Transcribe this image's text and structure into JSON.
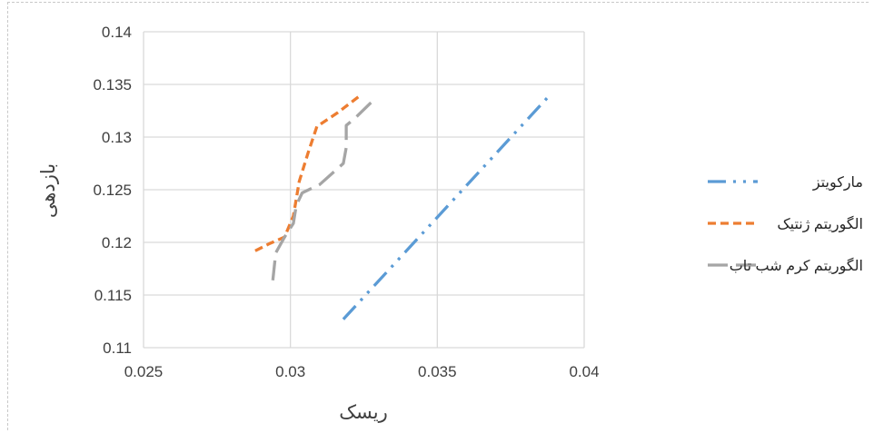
{
  "chart_data": {
    "type": "line",
    "title": "",
    "xlabel": "ریسک",
    "ylabel": "بازدهی",
    "xlim": [
      0.025,
      0.04
    ],
    "ylim": [
      0.11,
      0.14
    ],
    "xticks": [
      0.025,
      0.03,
      0.035,
      0.04
    ],
    "xtick_labels": [
      "0.025",
      "0.03",
      "0.035",
      "0.04"
    ],
    "yticks": [
      0.11,
      0.115,
      0.12,
      0.125,
      0.13,
      0.135,
      0.14
    ],
    "ytick_labels": [
      "0.11",
      "0.115",
      "0.12",
      "0.125",
      "0.13",
      "0.135",
      "0.14"
    ],
    "grid": true,
    "legend_position": "right",
    "series": [
      {
        "name": "مارکویتز",
        "color": "#5B9BD5",
        "dash": "dash-dot-dot",
        "points": [
          [
            0.0318,
            0.1127
          ],
          [
            0.0388,
            0.1339
          ]
        ]
      },
      {
        "name": "الگوریتم ژنتیک",
        "color": "#ED7D31",
        "dash": "short-dash",
        "points": [
          [
            0.0288,
            0.1192
          ],
          [
            0.0293,
            0.1199
          ],
          [
            0.0298,
            0.1205
          ],
          [
            0.0301,
            0.1225
          ],
          [
            0.0303,
            0.1258
          ],
          [
            0.0306,
            0.1285
          ],
          [
            0.0309,
            0.131
          ],
          [
            0.0316,
            0.1323
          ],
          [
            0.0324,
            0.134
          ]
        ]
      },
      {
        "name": "الگوریتم کرم شب تاب",
        "color": "#A5A5A5",
        "dash": "long-dash",
        "points": [
          [
            0.0294,
            0.1164
          ],
          [
            0.0295,
            0.119
          ],
          [
            0.0298,
            0.1205
          ],
          [
            0.0301,
            0.1218
          ],
          [
            0.0302,
            0.1235
          ],
          [
            0.0304,
            0.1247
          ],
          [
            0.031,
            0.1255
          ],
          [
            0.0318,
            0.1275
          ],
          [
            0.0319,
            0.129
          ],
          [
            0.0319,
            0.1311
          ],
          [
            0.0322,
            0.1318
          ],
          [
            0.0329,
            0.1337
          ]
        ]
      }
    ]
  }
}
